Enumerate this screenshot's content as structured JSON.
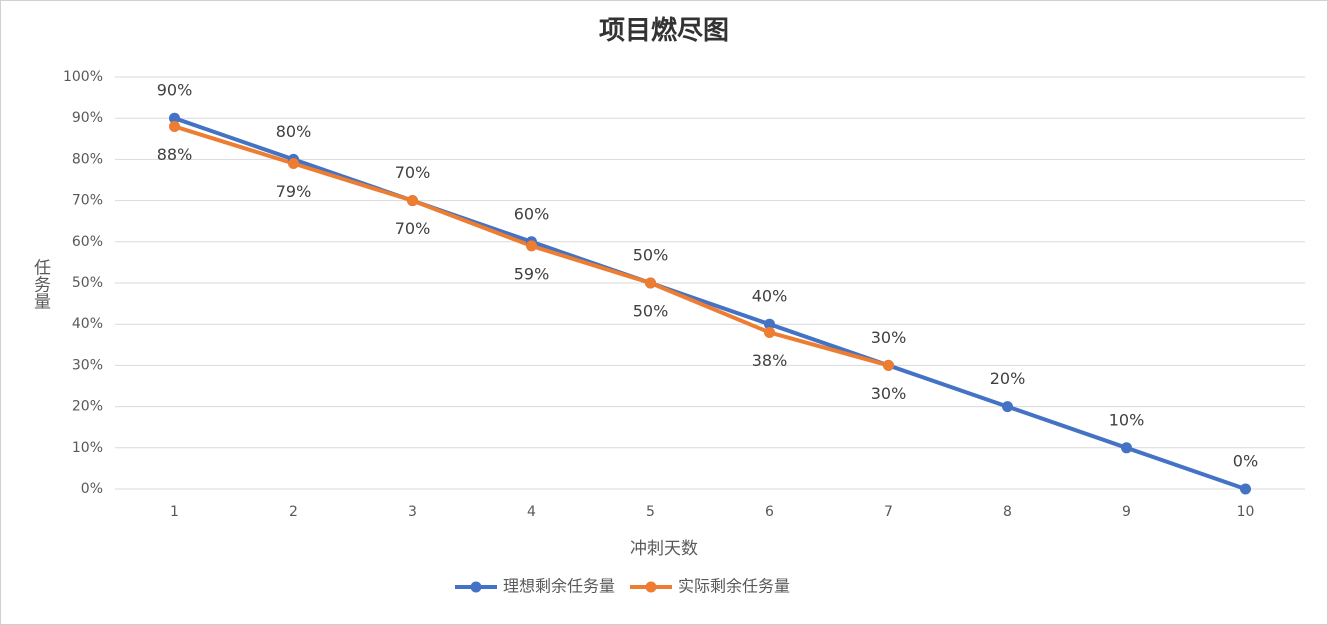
{
  "chart_data": {
    "type": "line",
    "title": "项目燃尽图",
    "x_label": "冲刺天数",
    "y_label": "任务量",
    "categories": [
      "1",
      "2",
      "3",
      "4",
      "5",
      "6",
      "7",
      "8",
      "9",
      "10"
    ],
    "series": [
      {
        "name": "理想剩余任务量",
        "color": "#4472c4",
        "values": [
          90,
          80,
          70,
          60,
          50,
          40,
          30,
          20,
          10,
          0
        ],
        "value_labels": [
          "90%",
          "80%",
          "70%",
          "60%",
          "50%",
          "40%",
          "30%",
          "20%",
          "10%",
          "0%"
        ]
      },
      {
        "name": "实际剩余任务量",
        "color": "#ed7d31",
        "values": [
          88,
          79,
          70,
          59,
          50,
          38,
          30,
          null,
          null,
          null
        ],
        "value_labels": [
          "88%",
          "79%",
          "70%",
          "59%",
          "50%",
          "38%",
          "30%",
          null,
          null,
          null
        ]
      }
    ],
    "ylim": [
      0,
      100
    ],
    "yticks": [
      {
        "value": 0,
        "label": "0%"
      },
      {
        "value": 10,
        "label": "10%"
      },
      {
        "value": 20,
        "label": "20%"
      },
      {
        "value": 30,
        "label": "30%"
      },
      {
        "value": 40,
        "label": "40%"
      },
      {
        "value": 50,
        "label": "50%"
      },
      {
        "value": 60,
        "label": "60%"
      },
      {
        "value": 70,
        "label": "70%"
      },
      {
        "value": 80,
        "label": "80%"
      },
      {
        "value": 90,
        "label": "90%"
      },
      {
        "value": 100,
        "label": "100%"
      }
    ],
    "grid": true,
    "legend": "bottom"
  }
}
